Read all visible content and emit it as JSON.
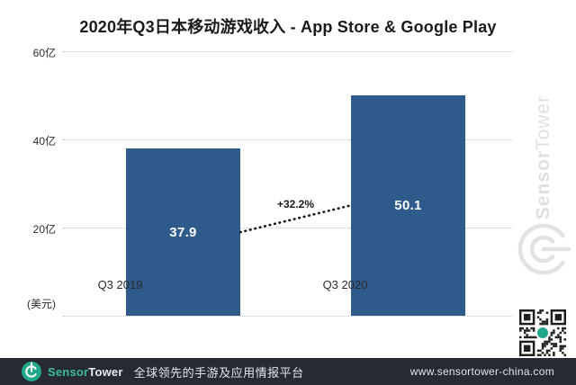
{
  "chart_data": {
    "type": "bar",
    "title": "2020年Q3日本移动游戏收入 - App Store & Google Play",
    "categories": [
      "Q3 2019",
      "Q3 2020"
    ],
    "values": [
      37.9,
      50.1
    ],
    "value_labels": [
      "37.9",
      "50.1"
    ],
    "growth_annotation": "+32.2%",
    "y_ticks": [
      {
        "label": "60亿",
        "value": 60
      },
      {
        "label": "40亿",
        "value": 40
      },
      {
        "label": "20亿",
        "value": 20
      }
    ],
    "y_axis_unit": "(美元)",
    "ylim": [
      0,
      60
    ],
    "grid": "horizontal-dotted",
    "legend": "none",
    "bar_color": "#2f5a8c"
  },
  "watermark": {
    "sensor": "Sensor",
    "tower": "Tower"
  },
  "footer": {
    "brand_sensor": "Sensor",
    "brand_tower": "Tower",
    "tagline": "全球领先的手游及应用情报平台",
    "url": "www.sensortower-china.com"
  },
  "colors": {
    "bar": "#2f5a8c",
    "teal": "#22a78c",
    "footer_bg": "#262a32",
    "watermark": "#e0e0e0"
  }
}
